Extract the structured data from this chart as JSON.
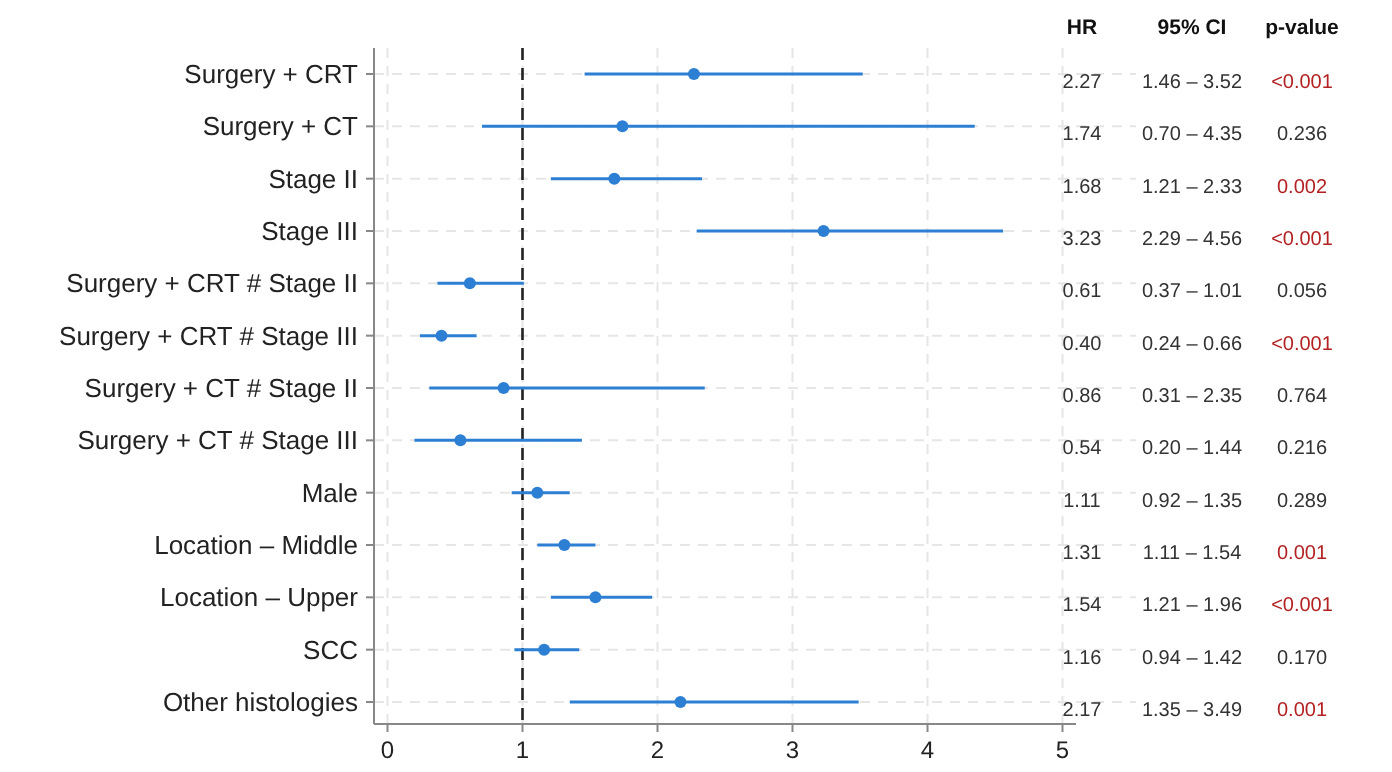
{
  "chart_data": {
    "type": "scatter",
    "orientation": "horizontal",
    "categories": [
      "Surgery + CRT",
      "Surgery + CT",
      "Stage II",
      "Stage III",
      "Surgery + CRT # Stage II",
      "Surgery + CRT # Stage III",
      "Surgery + CT # Stage II",
      "Surgery + CT # Stage III",
      "Male",
      "Location – Middle",
      "Location – Upper",
      "SCC",
      "Other histologies"
    ],
    "color": "#2d7fd3",
    "values": [
      2.27,
      1.74,
      1.68,
      3.23,
      0.61,
      0.4,
      0.86,
      0.54,
      1.11,
      1.31,
      1.54,
      1.16,
      2.17
    ],
    "errors": [
      [
        1.46,
        3.52
      ],
      [
        0.7,
        4.35
      ],
      [
        1.21,
        2.33
      ],
      [
        2.29,
        4.56
      ],
      [
        0.37,
        1.01
      ],
      [
        0.24,
        0.66
      ],
      [
        0.31,
        2.35
      ],
      [
        0.2,
        1.44
      ],
      [
        0.92,
        1.35
      ],
      [
        1.11,
        1.54
      ],
      [
        1.21,
        1.96
      ],
      [
        0.94,
        1.42
      ],
      [
        1.35,
        3.49
      ]
    ],
    "xlim": [
      -0.1,
      5.1
    ],
    "xticks": [
      0,
      1,
      2,
      3,
      4,
      5
    ],
    "grid": true,
    "marker": "circle",
    "ref_lines": [
      {
        "axis": "x",
        "value": 1,
        "color": "#222222",
        "line_style": "dashed"
      }
    ],
    "annotations": [
      "HR",
      "95% CI",
      "p-value",
      "2.27",
      "1.46 – 3.52",
      "<0.001",
      "1.74",
      "0.70 – 4.35",
      "0.236",
      "1.68",
      "1.21 – 2.33",
      "0.002",
      "3.23",
      "2.29 – 4.56",
      "<0.001",
      "0.61",
      "0.37 – 1.01",
      "0.056",
      "0.40",
      "0.24 – 0.66",
      "<0.001",
      "0.86",
      "0.31 – 2.35",
      "0.764",
      "0.54",
      "0.20 – 1.44",
      "0.216",
      "1.11",
      "0.92 – 1.35",
      "0.289",
      "1.31",
      "1.11 – 1.54",
      "0.001",
      "1.54",
      "1.21 – 1.96",
      "<0.001",
      "1.16",
      "0.94 – 1.42",
      "0.170",
      "2.17",
      "1.35 – 3.49",
      "0.001"
    ]
  }
}
